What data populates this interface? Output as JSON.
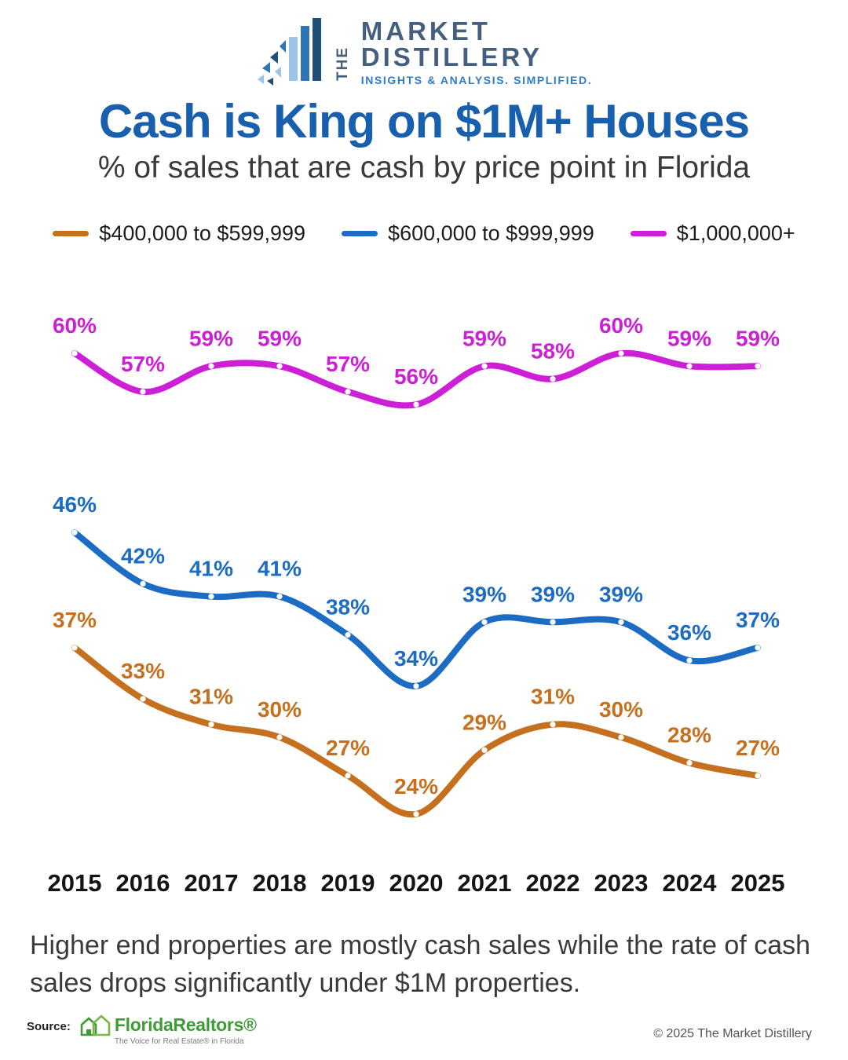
{
  "logo": {
    "the": "THE",
    "word1": "MARKET",
    "word2": "DISTILLERY",
    "tagline": "INSIGHTS & ANALYSIS. SIMPLIFIED."
  },
  "header": {
    "title": "Cash is King on $1M+ Houses",
    "subtitle": "% of sales that are cash by price point in Florida"
  },
  "chart_data": {
    "type": "line",
    "title": "Cash is King on $1M+ Houses",
    "subtitle": "% of sales that are cash by price point in Florida",
    "xlabel": "",
    "ylabel": "",
    "x": [
      2015,
      2016,
      2017,
      2018,
      2019,
      2020,
      2021,
      2022,
      2023,
      2024,
      2025
    ],
    "series": [
      {
        "name": "$400,000 to $599,999",
        "color": "#c4701e",
        "values": [
          37,
          33,
          31,
          30,
          27,
          24,
          29,
          31,
          30,
          28,
          27
        ]
      },
      {
        "name": "$600,000 to $999,999",
        "color": "#1b6cc2",
        "values": [
          46,
          42,
          41,
          41,
          38,
          34,
          39,
          39,
          39,
          36,
          37
        ]
      },
      {
        "name": "$1,000,000+",
        "color": "#cc1fd6",
        "values": [
          60,
          57,
          59,
          59,
          57,
          56,
          59,
          58,
          60,
          59,
          59
        ]
      }
    ],
    "value_suffix": "%",
    "ylim": [
      20,
      65
    ],
    "grid": false,
    "legend_position": "top",
    "point_labels": true
  },
  "footer": {
    "caption_line1": "Higher end properties are mostly cash sales while the rate of cash",
    "caption_line2": "sales drops significantly under $1M properties.",
    "source_label": "Source:",
    "source_name": "FloridaRealtors®",
    "source_tagline": "The Voice for Real Estate® in Florida",
    "copyright": "© 2025 The Market Distillery"
  }
}
